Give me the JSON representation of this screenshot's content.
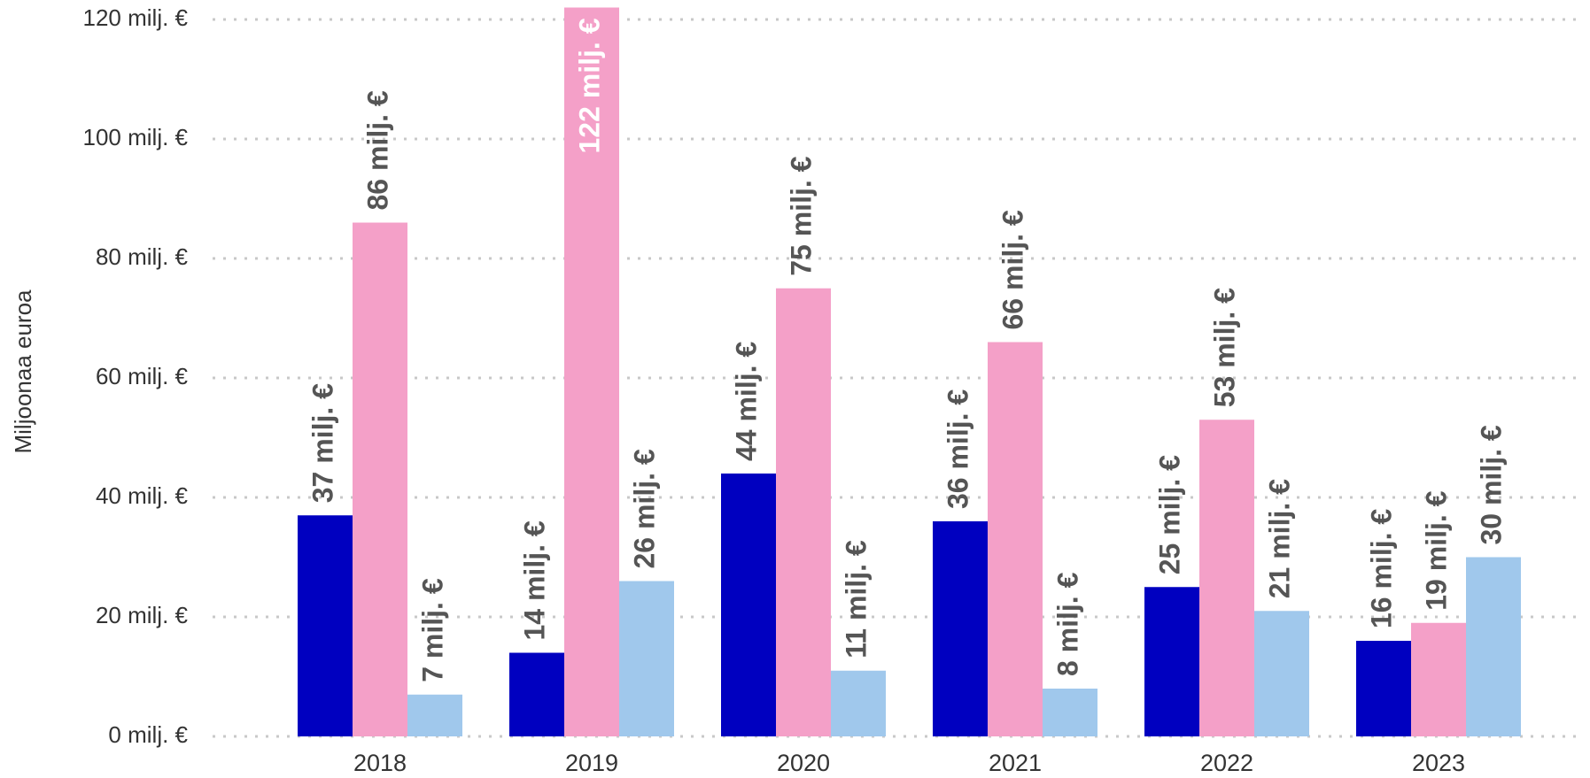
{
  "chart_data": {
    "type": "bar",
    "y_label": "Miljoonaa euroa",
    "categories": [
      "2018",
      "2019",
      "2020",
      "2021",
      "2022",
      "2023"
    ],
    "series": [
      {
        "color": "#0000c0",
        "values": [
          37,
          14,
          44,
          36,
          25,
          16
        ],
        "value_labels": [
          "37 milj. €",
          "14 milj. €",
          "44 milj. €",
          "36 milj. €",
          "25 milj. €",
          "16 milj. €"
        ]
      },
      {
        "color": "#f4a0c8",
        "values": [
          86,
          122,
          75,
          66,
          53,
          19
        ],
        "value_labels": [
          "86 milj. €",
          "122 milj. €",
          "75 milj. €",
          "66 milj. €",
          "53 milj. €",
          "19 milj. €"
        ]
      },
      {
        "color": "#a0c8ec",
        "values": [
          7,
          26,
          11,
          8,
          21,
          30
        ],
        "value_labels": [
          "7 milj. €",
          "26 milj. €",
          "11 milj. €",
          "8 milj. €",
          "21 milj. €",
          "30 milj. €"
        ]
      }
    ],
    "ylim": [
      0,
      122
    ],
    "yticks": [
      {
        "value": 0,
        "label": "0 milj. €"
      },
      {
        "value": 20,
        "label": "20 milj. €"
      },
      {
        "value": 40,
        "label": "40 milj. €"
      },
      {
        "value": 60,
        "label": "60 milj. €"
      },
      {
        "value": 80,
        "label": "80 milj. €"
      },
      {
        "value": 100,
        "label": "100 milj. €"
      },
      {
        "value": 120,
        "label": "120 milj. €"
      }
    ],
    "grid": true
  }
}
